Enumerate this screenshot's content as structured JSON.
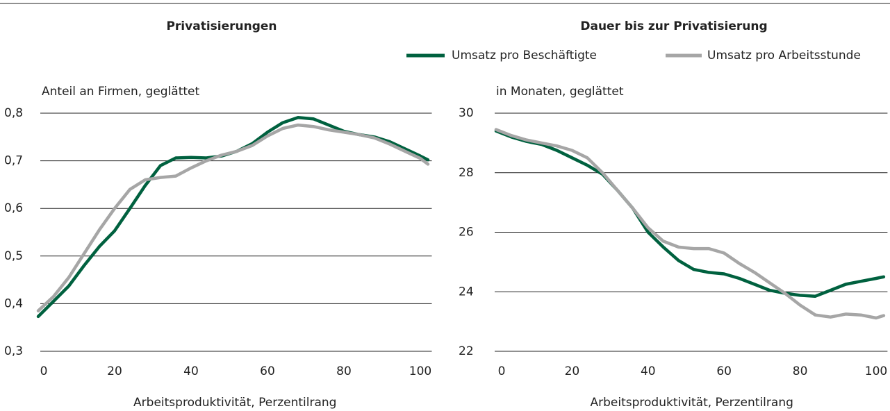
{
  "chart_data": [
    {
      "type": "line",
      "title": "Privatisierungen",
      "ylabel": "Anteil an Firmen, geglättet",
      "xlabel": "Arbeitsproduktivität, Perzentilrang",
      "x": [
        0,
        4,
        8,
        12,
        16,
        20,
        24,
        28,
        32,
        36,
        40,
        44,
        48,
        52,
        56,
        60,
        64,
        68,
        72,
        76,
        80,
        84,
        88,
        92,
        96,
        100,
        102
      ],
      "series": [
        {
          "name": "Umsatz pro Beschäftigte",
          "color": "#00613f",
          "values": [
            0.373,
            0.405,
            0.437,
            0.48,
            0.52,
            0.553,
            0.6,
            0.648,
            0.69,
            0.706,
            0.707,
            0.706,
            0.71,
            0.72,
            0.736,
            0.76,
            0.78,
            0.791,
            0.788,
            0.775,
            0.762,
            0.755,
            0.75,
            0.74,
            0.725,
            0.71,
            0.702
          ]
        },
        {
          "name": "Umsatz pro Arbeitsstunde",
          "color": "#a6a6a6",
          "values": [
            0.385,
            0.415,
            0.455,
            0.505,
            0.555,
            0.6,
            0.64,
            0.66,
            0.665,
            0.668,
            0.685,
            0.7,
            0.712,
            0.72,
            0.732,
            0.752,
            0.768,
            0.775,
            0.772,
            0.765,
            0.76,
            0.755,
            0.748,
            0.735,
            0.72,
            0.705,
            0.693
          ]
        }
      ],
      "xlim": [
        0,
        103
      ],
      "xticks": [
        0,
        20,
        40,
        60,
        80,
        100
      ],
      "ylim": [
        0.3,
        0.8
      ],
      "yticks": [
        {
          "value": 0.3,
          "label": "0,3"
        },
        {
          "value": 0.4,
          "label": "0,4"
        },
        {
          "value": 0.5,
          "label": "0,5"
        },
        {
          "value": 0.6,
          "label": "0,6"
        },
        {
          "value": 0.7,
          "label": "0,7"
        },
        {
          "value": 0.8,
          "label": "0,8"
        }
      ],
      "grid": true
    },
    {
      "type": "line",
      "title": "Dauer bis zur Privatisierung",
      "ylabel": "in Monaten, geglättet",
      "xlabel": "Arbeitsproduktivität, Perzentilrang",
      "x": [
        0,
        4,
        8,
        12,
        16,
        20,
        24,
        28,
        32,
        36,
        40,
        44,
        48,
        52,
        56,
        60,
        64,
        68,
        72,
        76,
        80,
        84,
        88,
        92,
        96,
        100,
        102
      ],
      "series": [
        {
          "color": "#00613f",
          "values": [
            29.4,
            29.2,
            29.05,
            28.95,
            28.75,
            28.5,
            28.25,
            27.95,
            27.4,
            26.8,
            26.0,
            25.5,
            25.05,
            24.75,
            24.65,
            24.6,
            24.45,
            24.25,
            24.05,
            23.95,
            23.88,
            23.85,
            24.05,
            24.25,
            24.35,
            24.45,
            24.5
          ]
        },
        {
          "color": "#a6a6a6",
          "values": [
            29.45,
            29.25,
            29.1,
            29.0,
            28.9,
            28.75,
            28.5,
            28.0,
            27.4,
            26.8,
            26.15,
            25.7,
            25.5,
            25.45,
            25.45,
            25.3,
            24.95,
            24.65,
            24.3,
            23.95,
            23.55,
            23.22,
            23.15,
            23.25,
            23.22,
            23.12,
            23.2
          ]
        }
      ],
      "xlim": [
        0,
        103
      ],
      "xticks": [
        0,
        20,
        40,
        60,
        80,
        100
      ],
      "ylim": [
        22,
        30
      ],
      "yticks": [
        22,
        24,
        26,
        28,
        30
      ],
      "grid": true
    }
  ]
}
